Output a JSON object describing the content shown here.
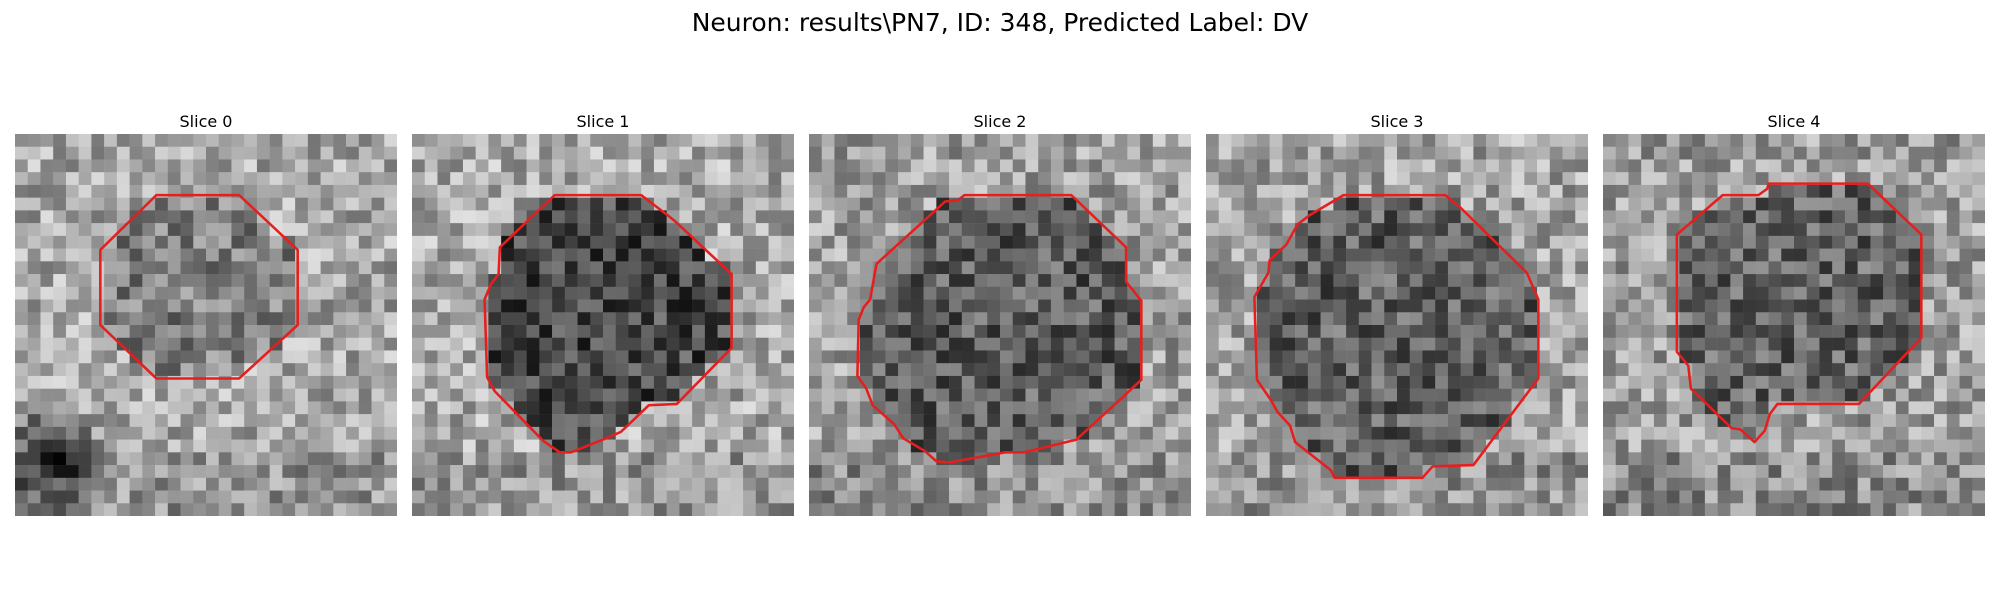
{
  "figure": {
    "title": "Neuron: results\\PN7, ID: 348, Predicted Label: DV"
  },
  "outline_color": "#e61e1e",
  "panels": [
    {
      "title": "Slice 0",
      "seed": 11,
      "base": 168,
      "inner": 128,
      "dark_lower_left": true
    },
    {
      "title": "Slice 1",
      "seed": 23,
      "base": 170,
      "inner": 72,
      "dark_lower_left": false
    },
    {
      "title": "Slice 2",
      "seed": 37,
      "base": 160,
      "inner": 92,
      "dark_lower_left": false
    },
    {
      "title": "Slice 3",
      "seed": 51,
      "base": 164,
      "inner": 95,
      "dark_lower_left": false
    },
    {
      "title": "Slice 4",
      "seed": 67,
      "base": 158,
      "inner": 100,
      "dark_lower_left": false
    }
  ]
}
